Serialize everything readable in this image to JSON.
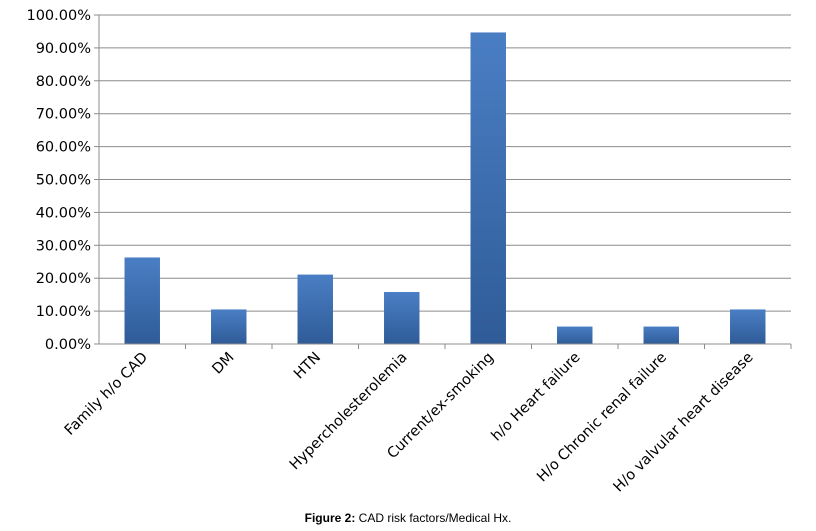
{
  "caption": {
    "label": "Figure 2:",
    "text": " CAD risk factors/Medical Hx."
  },
  "chart_data": {
    "type": "bar",
    "title": "",
    "xlabel": "",
    "ylabel": "",
    "categories": [
      "Family h/o CAD",
      "DM",
      "HTN",
      "Hypercholesterolemia",
      "Current/ex-smoking",
      "h/o Heart failure",
      "H/o Chronic renal failure",
      "H/o valvular heart disease"
    ],
    "series": [
      {
        "values": [
          26.3,
          10.5,
          21.1,
          15.8,
          94.7,
          5.3,
          5.3,
          10.5
        ]
      }
    ],
    "ylim": [
      0,
      100
    ],
    "yticks": [
      0,
      10,
      20,
      30,
      40,
      50,
      60,
      70,
      80,
      90,
      100
    ],
    "ytick_labels": [
      "0.00%",
      "10.00%",
      "20.00%",
      "30.00%",
      "40.00%",
      "50.00%",
      "60.00%",
      "70.00%",
      "80.00%",
      "90.00%",
      "100.00%"
    ],
    "grid": true,
    "legend": "none",
    "colors": {
      "bar": "#3d6aaa",
      "grid": "#8c8c8c",
      "axis": "#8c8c8c"
    }
  }
}
